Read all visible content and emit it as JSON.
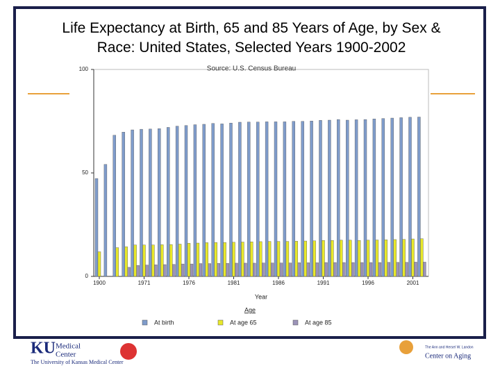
{
  "chart_data": {
    "type": "bar",
    "title": "Life Expectancy at Birth, 65 and 85 Years of Age, by Sex & Race: United States, Selected Years 1900-2002",
    "subtitle": "Source: U.S. Census Bureau",
    "x_label": "Year",
    "legend_title": "Age",
    "legend": "bottom",
    "categories": [
      "1900",
      null,
      null,
      null,
      null,
      "1971",
      null,
      null,
      null,
      null,
      "1976",
      null,
      null,
      null,
      null,
      "1981",
      null,
      null,
      null,
      null,
      "1986",
      null,
      null,
      null,
      null,
      "1991",
      null,
      null,
      null,
      null,
      "1996",
      null,
      null,
      null,
      null,
      "2001",
      null
    ],
    "series": [
      {
        "name": "At birth",
        "color": "#7f9ccb",
        "values": [
          47.3,
          54.1,
          68.2,
          69.7,
          70.8,
          71.1,
          71.2,
          71.4,
          72.0,
          72.6,
          72.9,
          73.3,
          73.5,
          73.9,
          73.7,
          74.1,
          74.5,
          74.6,
          74.6,
          74.7,
          74.7,
          74.7,
          74.9,
          74.9,
          75.1,
          75.4,
          75.5,
          75.8,
          75.5,
          75.7,
          75.8,
          76.1,
          76.3,
          76.5,
          76.7,
          76.9,
          77.0
        ]
      },
      {
        "name": "At age 65",
        "color": "#e8e82a",
        "values": [
          11.9,
          null,
          13.9,
          14.3,
          15.2,
          15.2,
          15.2,
          15.3,
          15.4,
          15.6,
          16.0,
          16.1,
          16.3,
          16.4,
          16.4,
          16.5,
          16.6,
          16.7,
          16.8,
          16.9,
          16.9,
          16.9,
          17.0,
          17.1,
          17.2,
          17.4,
          17.4,
          17.5,
          17.5,
          17.4,
          17.5,
          17.6,
          17.7,
          17.8,
          17.9,
          18.1,
          18.2
        ]
      },
      {
        "name": "At age 85",
        "color": "#9b93b8",
        "values": [
          null,
          null,
          null,
          4.4,
          5.3,
          5.5,
          5.6,
          5.7,
          5.8,
          6.0,
          6.0,
          6.2,
          6.2,
          6.3,
          6.3,
          6.4,
          6.4,
          6.4,
          6.5,
          6.5,
          6.5,
          6.5,
          6.6,
          6.6,
          6.6,
          6.7,
          6.7,
          6.7,
          6.7,
          6.7,
          6.7,
          6.7,
          6.8,
          6.8,
          6.8,
          6.9,
          6.9
        ]
      }
    ],
    "ylim": [
      0,
      100
    ],
    "yticks": [
      0,
      50,
      100
    ],
    "grid": false
  },
  "footer": {
    "left_logo": [
      "KU",
      "Medical",
      "Center",
      "The University of Kansas Medical Center"
    ],
    "right_logo": [
      "The Ann and Hersel W. Landon",
      "Center on Aging"
    ]
  }
}
